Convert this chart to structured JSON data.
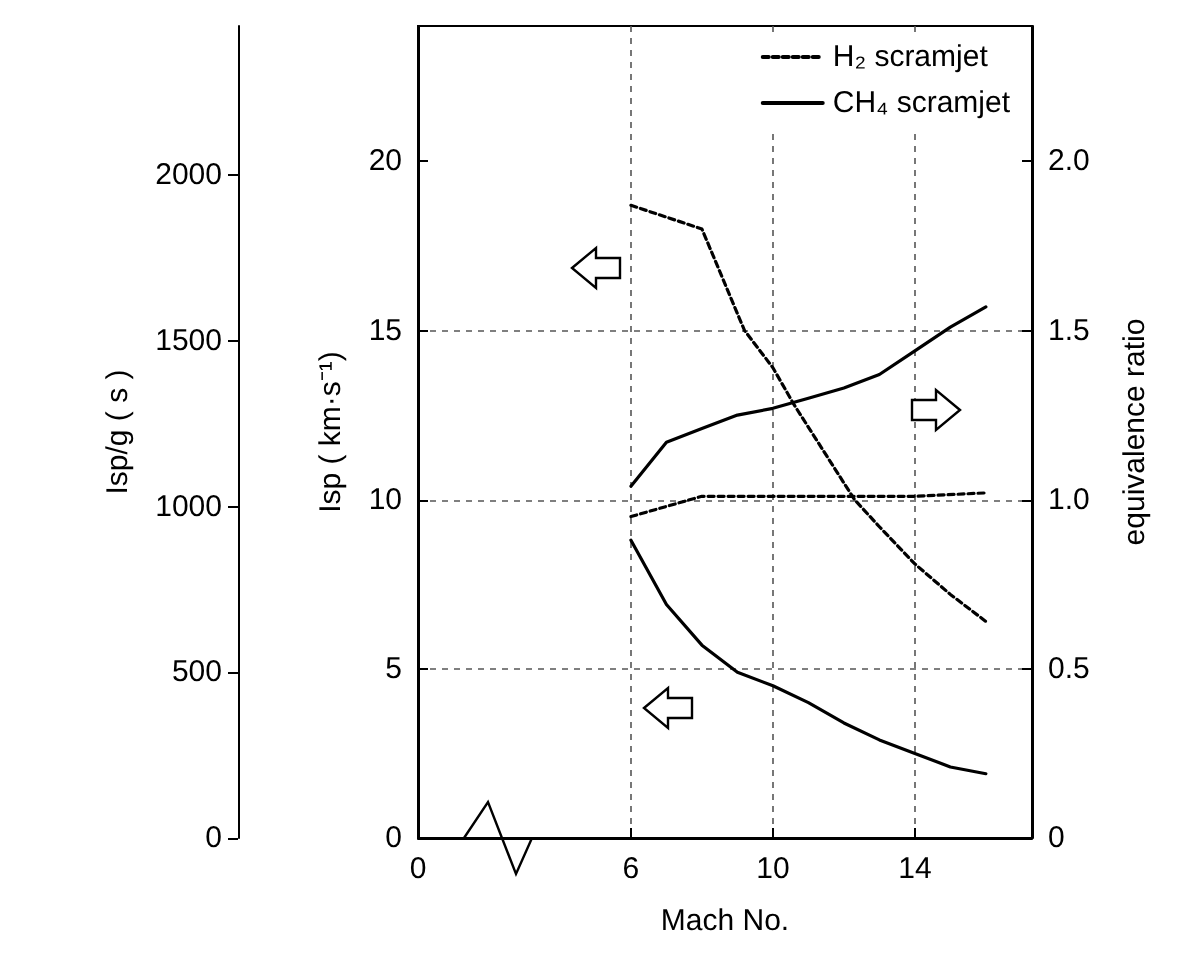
{
  "chart_data": {
    "type": "line",
    "xlabel": "Mach No.",
    "ylabel": "Isp ( km·s⁻¹)",
    "y2label": "equivalence ratio",
    "y3label": "Isp/g ( s )",
    "xlim": [
      0,
      17.3
    ],
    "xticks": [
      0,
      6,
      10,
      14
    ],
    "ylim": [
      0,
      24
    ],
    "yticks": [
      0,
      5,
      10,
      15,
      20
    ],
    "y2lim": [
      0,
      2.4
    ],
    "y2ticks": [
      0,
      0.5,
      {
        "value": 1,
        "label": "1.0"
      },
      1.5,
      {
        "value": 2,
        "label": "2.0"
      }
    ],
    "y3lim": [
      0,
      2450
    ],
    "y3ticks": [
      0,
      500,
      1000,
      1500,
      2000
    ],
    "grid": true,
    "legend": "top right",
    "marker": "none",
    "series": [
      {
        "name": "H₂ scramjet",
        "color": "#000000",
        "line_style": "dashed",
        "axis": "y",
        "x": [
          6,
          8,
          9.2,
          10,
          10.6,
          12.3,
          13,
          14,
          15,
          16
        ],
        "values": [
          18.7,
          18.0,
          15,
          13.9,
          12.8,
          10,
          9.2,
          8.1,
          7.2,
          6.4
        ]
      },
      {
        "name": "CH₄ scramjet",
        "color": "#000000",
        "line_style": "solid",
        "axis": "y",
        "x": [
          6,
          7,
          8,
          9,
          10,
          11,
          12,
          13,
          14,
          15,
          16
        ],
        "values": [
          8.8,
          6.9,
          5.7,
          4.9,
          4.5,
          4.0,
          3.4,
          2.9,
          2.5,
          2.1,
          1.9
        ]
      },
      {
        "color": "#000000",
        "line_style": "dashed",
        "axis": "y2",
        "x": [
          6,
          8,
          10,
          12,
          14,
          16
        ],
        "values": [
          0.95,
          1.01,
          1.01,
          1.01,
          1.01,
          1.02
        ]
      },
      {
        "color": "#000000",
        "line_style": "solid",
        "axis": "y2",
        "x": [
          6,
          7,
          8,
          9,
          10,
          11,
          12,
          13,
          14,
          15,
          16
        ],
        "values": [
          1.04,
          1.17,
          1.21,
          1.25,
          1.27,
          1.3,
          1.33,
          1.37,
          1.44,
          1.51,
          1.57
        ]
      }
    ]
  }
}
